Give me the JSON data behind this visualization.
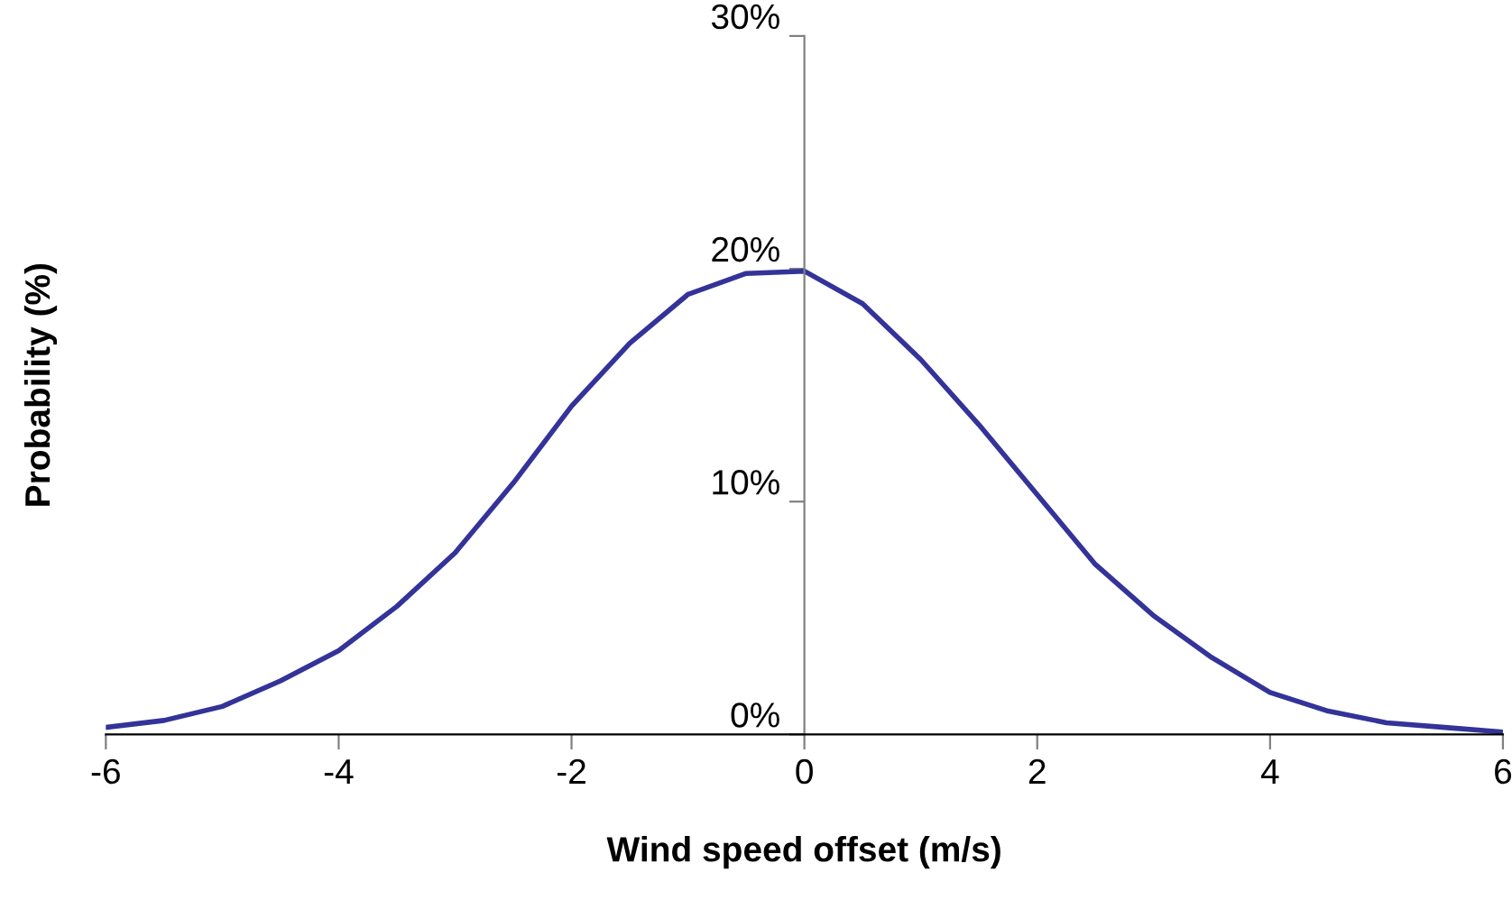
{
  "chart_data": {
    "type": "line",
    "xlabel": "Wind speed offset (m/s)",
    "ylabel": "Probability (%)",
    "x": [
      -6,
      -5.5,
      -5,
      -4.5,
      -4,
      -3.5,
      -3,
      -2.5,
      -2,
      -1.5,
      -1,
      -0.5,
      0,
      0.5,
      1,
      1.5,
      2,
      2.5,
      3,
      3.5,
      4,
      4.5,
      5,
      5.5,
      6
    ],
    "series": [
      {
        "color": "#333399",
        "values": [
          0.3,
          0.6,
          1.2,
          2.3,
          3.6,
          5.5,
          7.8,
          10.8,
          14.1,
          16.8,
          18.9,
          19.8,
          19.9,
          18.5,
          16.1,
          13.3,
          10.3,
          7.3,
          5.1,
          3.3,
          1.8,
          1.0,
          0.5,
          0.3,
          0.1
        ]
      }
    ],
    "xlim": [
      -6,
      6
    ],
    "xticks": [
      -6,
      -4,
      -2,
      0,
      2,
      4,
      6
    ],
    "ylim": [
      0,
      30
    ],
    "yticks": [
      {
        "value": 0,
        "label": "0%"
      },
      {
        "value": 10,
        "label": "10%"
      },
      {
        "value": 20,
        "label": "20%"
      },
      {
        "value": 30,
        "label": "30%"
      }
    ],
    "grid": false,
    "legend": false,
    "marker": "none",
    "line_style": "solid"
  }
}
